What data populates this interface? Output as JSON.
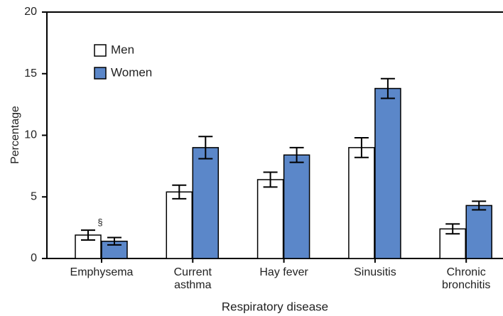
{
  "chart_data": {
    "type": "bar",
    "x_label": "Respiratory disease",
    "y_label": "Percentage",
    "categories": [
      [
        "Emphysema"
      ],
      [
        "Current",
        "asthma"
      ],
      [
        "Hay fever"
      ],
      [
        "Sinusitis"
      ],
      [
        "Chronic",
        "bronchitis"
      ]
    ],
    "series": [
      {
        "name": "Men",
        "color": "#ffffff",
        "values": [
          1.9,
          5.4,
          6.4,
          9.0,
          2.4
        ],
        "errors": [
          0.4,
          0.55,
          0.6,
          0.8,
          0.4
        ]
      },
      {
        "name": "Women",
        "color": "#5b87c9",
        "values": [
          1.4,
          9.0,
          8.4,
          13.8,
          4.3
        ],
        "errors": [
          0.3,
          0.9,
          0.6,
          0.8,
          0.35
        ]
      }
    ],
    "annotation": "§",
    "ylim": [
      0,
      20
    ],
    "yticks": [
      0,
      5,
      10,
      15,
      20
    ]
  }
}
